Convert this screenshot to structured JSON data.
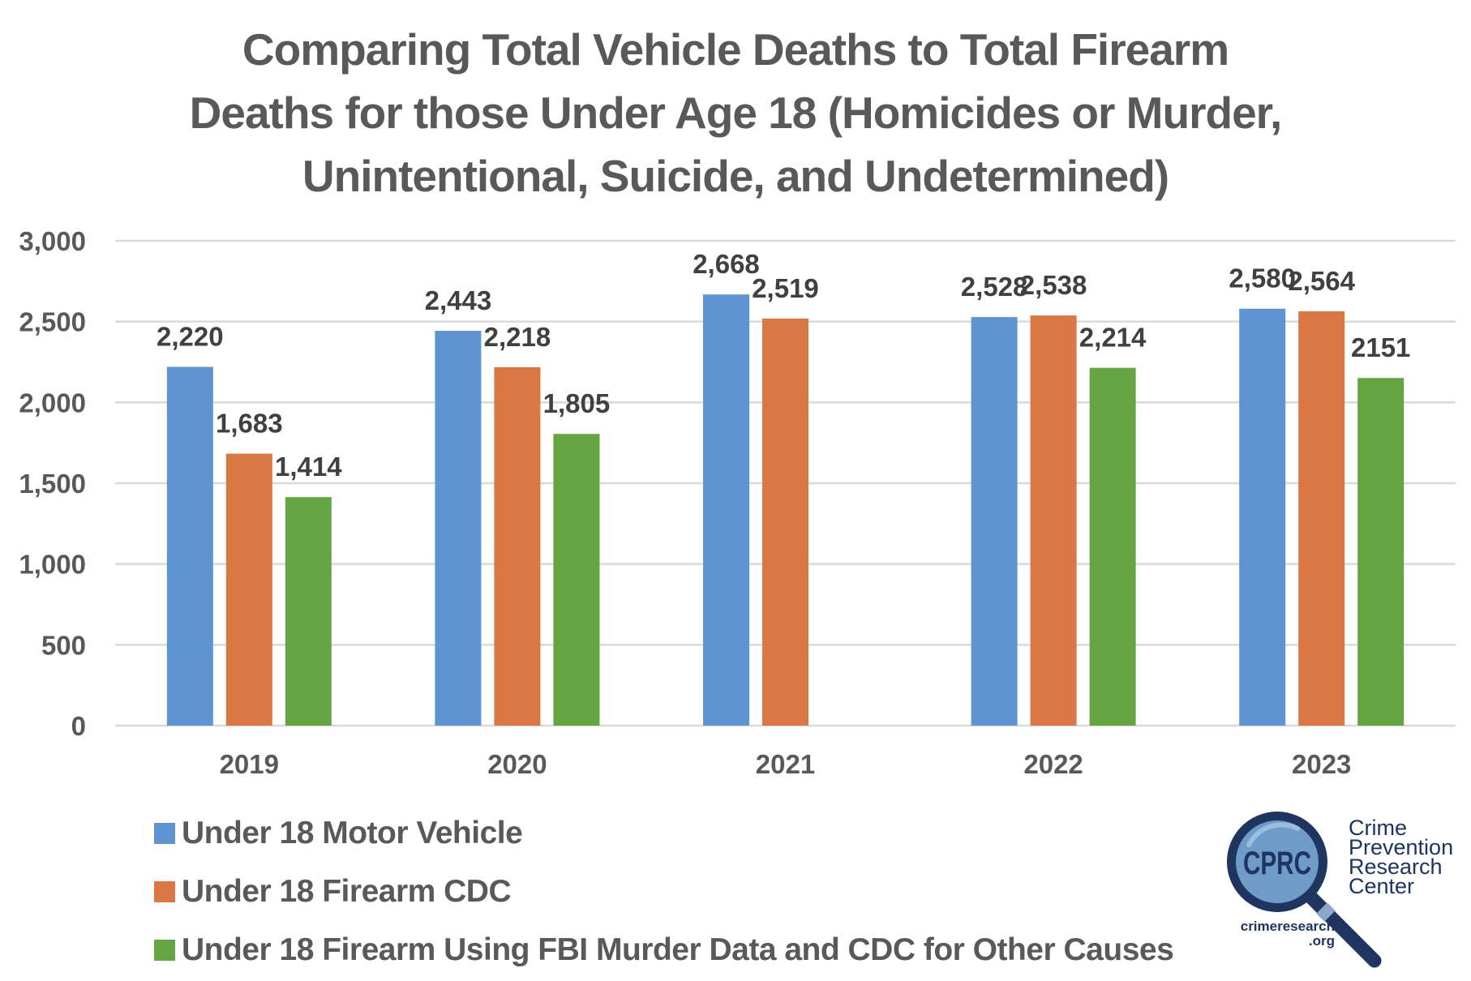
{
  "chart_data": {
    "type": "bar",
    "title": "Comparing Total Vehicle Deaths to Total Firearm Deaths for those Under Age 18 (Homicides or Murder, Unintentional, Suicide, and Undetermined)",
    "title_lines": [
      "Comparing Total Vehicle Deaths to Total Firearm",
      "Deaths for those Under Age 18 (Homicides or Murder,",
      "Unintentional, Suicide, and Undetermined)"
    ],
    "xlabel": "",
    "ylabel": "",
    "categories": [
      "2019",
      "2020",
      "2021",
      "2022",
      "2023"
    ],
    "ylim": [
      0,
      3000
    ],
    "yticks": [
      0,
      500,
      1000,
      1500,
      2000,
      2500,
      3000
    ],
    "ytick_labels": [
      "0",
      "500",
      "1,000",
      "1,500",
      "2,000",
      "2,500",
      "3,000"
    ],
    "grid": true,
    "legend_position": "bottom-left",
    "series": [
      {
        "name": "Under 18 Motor Vehicle",
        "color": "#5f94d2",
        "values": [
          2220,
          2443,
          2668,
          2528,
          2580
        ],
        "labels": [
          "2,220",
          "2,443",
          "2,668",
          "2,528",
          "2,580"
        ]
      },
      {
        "name": "Under 18 Firearm CDC",
        "color": "#d97845",
        "values": [
          1683,
          2218,
          2519,
          2538,
          2564
        ],
        "labels": [
          "1,683",
          "2,218",
          "2,519",
          "2,538",
          "2,564"
        ]
      },
      {
        "name": "Under 18 Firearm Using FBI Murder Data and CDC for Other Causes",
        "color": "#64a542",
        "values": [
          1414,
          1805,
          null,
          2214,
          2151
        ],
        "labels": [
          "1,414",
          "1,805",
          null,
          "2,214",
          "2151"
        ]
      }
    ]
  },
  "logo": {
    "badge_text": "CPRC",
    "name_lines": [
      "Crime",
      "Prevention",
      "Research",
      "Center"
    ],
    "url_lines": [
      "crimeresearch",
      ".org"
    ],
    "colors": {
      "navy": "#1e3560",
      "lens": "#6f9bc8",
      "lens_highlight": "#a9c6e3"
    }
  }
}
